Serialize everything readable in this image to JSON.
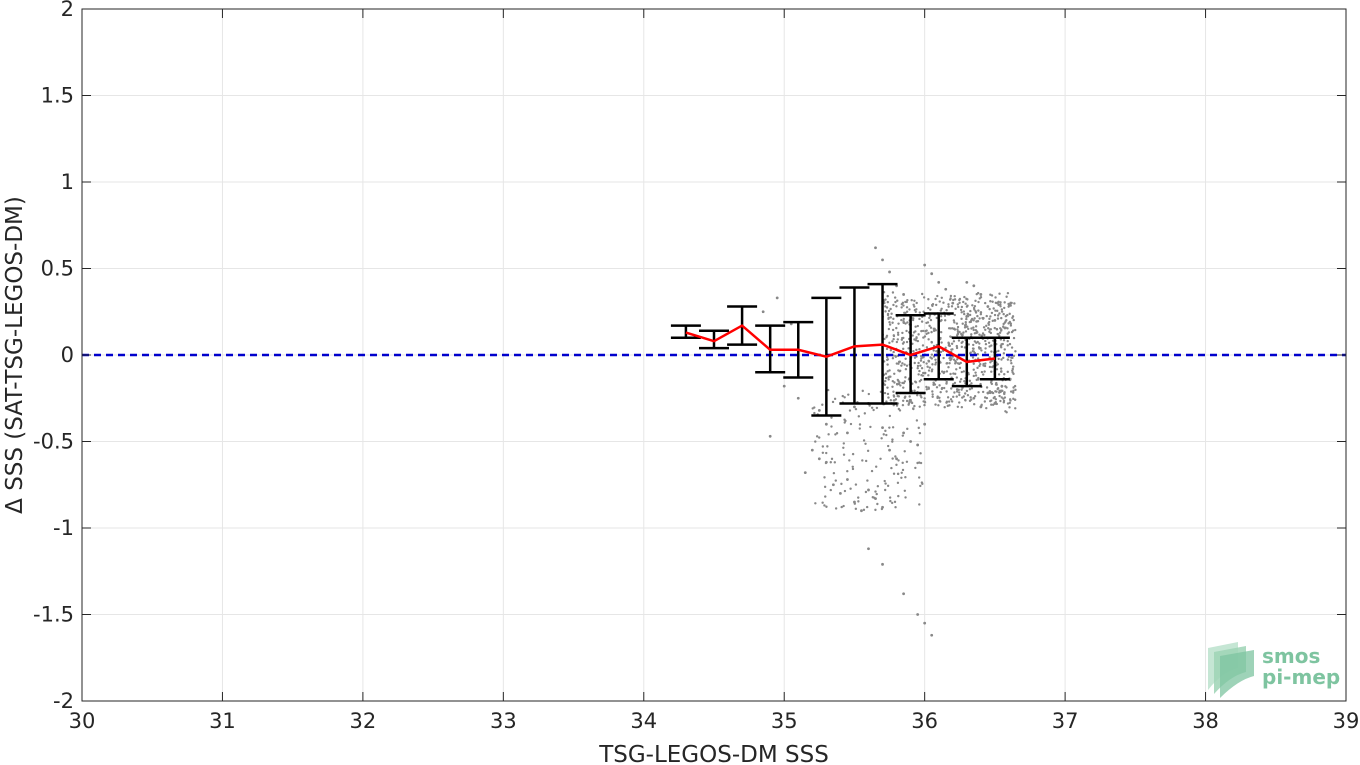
{
  "chart_data": {
    "type": "scatter",
    "xlabel": "TSG-LEGOS-DM SSS",
    "ylabel": "Δ SSS (SAT-TSG-LEGOS-DM)",
    "xlim": [
      30,
      39
    ],
    "ylim": [
      -2,
      2
    ],
    "x_ticks": [
      "30",
      "31",
      "32",
      "33",
      "34",
      "35",
      "36",
      "37",
      "38",
      "39"
    ],
    "y_ticks": [
      "-2",
      "-1.5",
      "-1",
      "-0.5",
      "0",
      "0.5",
      "1",
      "1.5",
      "2"
    ],
    "grid": true,
    "reference_line": {
      "y": 0,
      "color": "#0000cc",
      "style": "dashed"
    },
    "scatter_color": "#888888",
    "scatter_points": [
      [
        34.95,
        0.33
      ],
      [
        34.85,
        0.25
      ],
      [
        35.05,
        0.18
      ],
      [
        35.0,
        -0.18
      ],
      [
        35.1,
        -0.25
      ],
      [
        34.9,
        -0.47
      ],
      [
        35.2,
        -0.55
      ],
      [
        35.25,
        -0.6
      ],
      [
        35.15,
        -0.68
      ],
      [
        35.3,
        -0.62
      ],
      [
        35.35,
        -0.75
      ],
      [
        35.4,
        -0.8
      ],
      [
        35.45,
        -0.72
      ],
      [
        35.5,
        -0.85
      ],
      [
        35.55,
        -0.9
      ],
      [
        35.6,
        -0.78
      ],
      [
        35.65,
        -0.83
      ],
      [
        35.7,
        -0.88
      ],
      [
        35.75,
        -0.55
      ],
      [
        35.8,
        -0.6
      ],
      [
        35.85,
        -0.45
      ],
      [
        35.9,
        -0.5
      ],
      [
        35.95,
        -0.52
      ],
      [
        36.0,
        -0.4
      ],
      [
        35.6,
        -1.12
      ],
      [
        35.7,
        -1.21
      ],
      [
        35.85,
        -1.38
      ],
      [
        36.05,
        -1.62
      ],
      [
        36.0,
        -1.55
      ],
      [
        35.95,
        -1.5
      ],
      [
        35.5,
        -0.3
      ],
      [
        35.45,
        -0.45
      ],
      [
        35.3,
        -0.4
      ],
      [
        35.25,
        -0.32
      ],
      [
        35.7,
        -0.42
      ],
      [
        35.65,
        0.62
      ],
      [
        35.7,
        0.55
      ],
      [
        35.75,
        0.48
      ],
      [
        35.8,
        0.4
      ],
      [
        35.85,
        0.35
      ],
      [
        36.0,
        0.52
      ],
      [
        36.05,
        0.47
      ],
      [
        36.1,
        0.42
      ],
      [
        36.15,
        0.38
      ],
      [
        36.2,
        0.3
      ],
      [
        36.3,
        0.42
      ],
      [
        36.35,
        0.4
      ],
      [
        36.4,
        0.35
      ],
      [
        36.45,
        0.28
      ],
      [
        36.5,
        0.2
      ],
      [
        36.5,
        -0.28
      ],
      [
        36.45,
        -0.22
      ],
      [
        36.4,
        -0.3
      ],
      [
        36.35,
        -0.25
      ],
      [
        36.55,
        -0.18
      ]
    ],
    "binned_series": {
      "name": "",
      "line_color": "#ff0000",
      "errorbar_color": "#000000",
      "x": [
        34.3,
        34.5,
        34.7,
        34.9,
        35.1,
        35.3,
        35.5,
        35.7,
        35.9,
        36.1,
        36.3,
        36.5
      ],
      "y": [
        0.13,
        0.08,
        0.17,
        0.03,
        0.03,
        -0.01,
        0.05,
        0.06,
        0.0,
        0.05,
        -0.04,
        -0.02
      ],
      "lower": [
        0.1,
        0.04,
        0.06,
        -0.1,
        -0.13,
        -0.35,
        -0.28,
        -0.28,
        -0.22,
        -0.14,
        -0.18,
        -0.14
      ],
      "upper": [
        0.17,
        0.14,
        0.28,
        0.17,
        0.19,
        0.33,
        0.39,
        0.41,
        0.23,
        0.24,
        0.1,
        0.1
      ]
    }
  },
  "logo": {
    "line1": "smos",
    "line2": "pi-mep",
    "color": "#7ec4a0"
  }
}
